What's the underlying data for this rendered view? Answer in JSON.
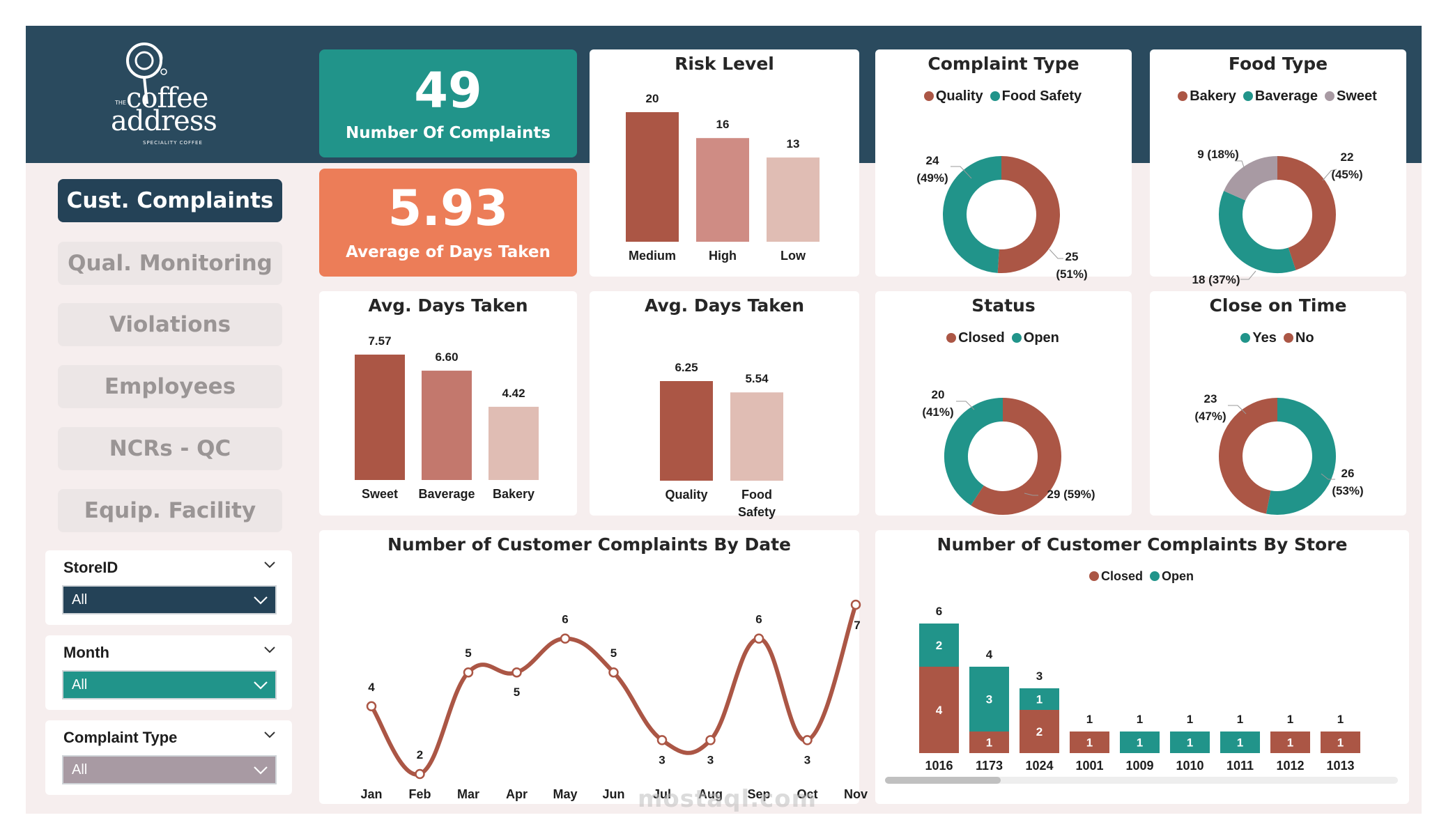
{
  "logo": {
    "the": "THE",
    "line1": "coffee",
    "line2": "address",
    "tagline": "SPECIALITY COFFEE"
  },
  "nav": [
    {
      "label": "Cust. Complaints",
      "active": true
    },
    {
      "label": "Qual. Monitoring",
      "active": false
    },
    {
      "label": "Violations",
      "active": false
    },
    {
      "label": "Employees",
      "active": false
    },
    {
      "label": "NCRs - QC",
      "active": false
    },
    {
      "label": "Equip. Facility",
      "active": false
    }
  ],
  "slicers": [
    {
      "title": "StoreID",
      "value": "All",
      "color": "#244257"
    },
    {
      "title": "Month",
      "value": "All",
      "color": "#21948a"
    },
    {
      "title": "Complaint Type",
      "value": "All",
      "color": "#a89aa3"
    }
  ],
  "kpis": [
    {
      "value": "49",
      "label": "Number Of Complaints",
      "color": "#21948a"
    },
    {
      "value": "5.93",
      "label": "Average of Days Taken",
      "color": "#ec7d58"
    }
  ],
  "colors": {
    "red": "#ab5645",
    "teal": "#21948a",
    "grey": "#a89aa3",
    "navy": "#2a4a5e",
    "rose": "#c3786d",
    "pink": "#cf8c84",
    "blush": "#e0bdb4"
  },
  "chart_data": [
    {
      "id": "risk",
      "type": "bar",
      "title": "Risk Level",
      "categories": [
        "Medium",
        "High",
        "Low"
      ],
      "values": [
        20,
        16,
        13
      ],
      "data_labels": [
        "20",
        "16",
        "13"
      ],
      "colors": [
        "#ab5645",
        "#cf8c84",
        "#e0bdb4"
      ]
    },
    {
      "id": "complaint_type",
      "type": "pie",
      "title": "Complaint Type",
      "legend": [
        "Quality",
        "Food Safety"
      ],
      "slices": [
        {
          "label": "Quality",
          "value": 25,
          "text": "25 (51%)",
          "color": "#ab5645"
        },
        {
          "label": "Food Safety",
          "value": 24,
          "text": "24 (49%)",
          "color": "#21948a"
        }
      ]
    },
    {
      "id": "food_type",
      "type": "pie",
      "title": "Food Type",
      "legend": [
        "Bakery",
        "Baverage",
        "Sweet"
      ],
      "slices": [
        {
          "label": "Bakery",
          "value": 22,
          "text": "22 (45%)",
          "color": "#ab5645"
        },
        {
          "label": "Baverage",
          "value": 18,
          "text": "18 (37%)",
          "color": "#21948a"
        },
        {
          "label": "Sweet",
          "value": 9,
          "text": "9 (18%)",
          "color": "#a89aa3"
        }
      ]
    },
    {
      "id": "avg_food",
      "type": "bar",
      "title": "Avg. Days Taken",
      "categories": [
        "Sweet",
        "Baverage",
        "Bakery"
      ],
      "values": [
        7.57,
        6.6,
        4.42
      ],
      "data_labels": [
        "7.57",
        "6.60",
        "4.42"
      ],
      "colors": [
        "#ab5645",
        "#c3786d",
        "#e0bdb4"
      ]
    },
    {
      "id": "avg_type",
      "type": "bar",
      "title": "Avg. Days Taken",
      "categories": [
        "Quality",
        "Food Safety"
      ],
      "values": [
        6.25,
        5.54
      ],
      "data_labels": [
        "6.25",
        "5.54"
      ],
      "colors": [
        "#ab5645",
        "#e0bdb4"
      ]
    },
    {
      "id": "status",
      "type": "pie",
      "title": "Status",
      "legend": [
        "Closed",
        "Open"
      ],
      "slices": [
        {
          "label": "Closed",
          "value": 29,
          "text": "29 (59%)",
          "color": "#ab5645"
        },
        {
          "label": "Open",
          "value": 20,
          "text": "20 (41%)",
          "color": "#21948a"
        }
      ]
    },
    {
      "id": "close_on_time",
      "type": "pie",
      "title": "Close on Time",
      "legend": [
        "Yes",
        "No"
      ],
      "slices": [
        {
          "label": "Yes",
          "value": 26,
          "text": "26 (53%)",
          "color": "#21948a"
        },
        {
          "label": "No",
          "value": 23,
          "text": "23 (47%)",
          "color": "#ab5645"
        }
      ]
    },
    {
      "id": "by_date",
      "type": "line",
      "title": "Number of Customer Complaints By Date",
      "categories": [
        "Jan",
        "Feb",
        "Mar",
        "Apr",
        "May",
        "Jun",
        "Jul",
        "Aug",
        "Sep",
        "Oct",
        "Nov"
      ],
      "values": [
        4,
        2,
        5,
        5,
        6,
        5,
        3,
        3,
        6,
        3,
        7
      ],
      "ylim": [
        2,
        7
      ],
      "color": "#ab5645"
    },
    {
      "id": "by_store",
      "type": "bar",
      "stacked": true,
      "title": "Number of Customer Complaints By Store",
      "legend": [
        "Closed",
        "Open"
      ],
      "categories": [
        "1016",
        "1173",
        "1024",
        "1001",
        "1009",
        "1010",
        "1011",
        "1012",
        "1013"
      ],
      "series": [
        {
          "name": "Closed",
          "values": [
            4,
            1,
            2,
            1,
            0,
            0,
            0,
            1,
            1
          ],
          "color": "#ab5645"
        },
        {
          "name": "Open",
          "values": [
            2,
            3,
            1,
            0,
            1,
            1,
            1,
            0,
            0
          ],
          "color": "#21948a"
        }
      ],
      "totals": [
        6,
        4,
        3,
        1,
        1,
        1,
        1,
        1,
        1
      ]
    }
  ],
  "watermark": "mostaql.com"
}
